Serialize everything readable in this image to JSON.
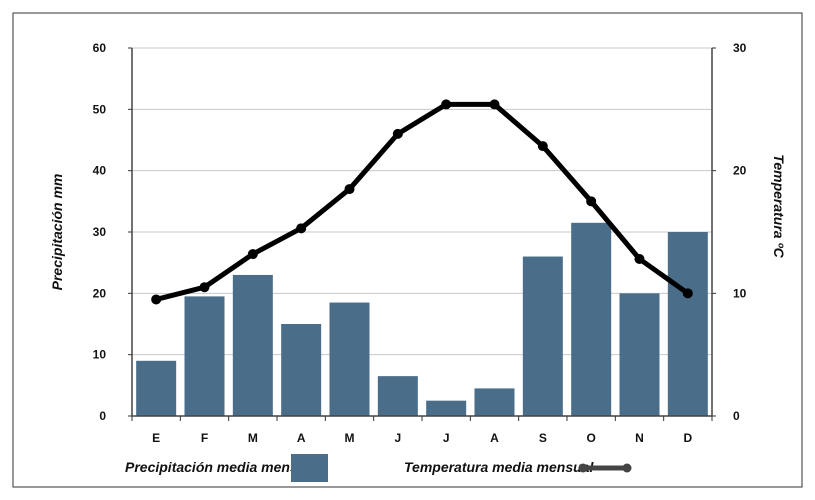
{
  "chart_data": {
    "type": "bar",
    "categories": [
      "E",
      "F",
      "M",
      "A",
      "M",
      "J",
      "J",
      "A",
      "S",
      "O",
      "N",
      "D"
    ],
    "series": [
      {
        "name": "Precipitación media mensual",
        "type": "bar",
        "axis": "left",
        "values": [
          9,
          19.5,
          23,
          15,
          18.5,
          6.5,
          2.5,
          4.5,
          26,
          31.5,
          20,
          30
        ],
        "color": "#4a6e8a"
      },
      {
        "name": "Temperatura media mensual",
        "type": "line",
        "axis": "right",
        "values": [
          9.5,
          10.5,
          13.2,
          15.3,
          18.5,
          23,
          25.4,
          25.4,
          22,
          17.5,
          12.8,
          10
        ],
        "color": "#000000"
      }
    ],
    "ylabel": "Precipitación mm",
    "y2label": "Temperatura ºC",
    "ylim": [
      0,
      60
    ],
    "y2lim": [
      0,
      30
    ],
    "yticks": [
      "0",
      "10",
      "20",
      "30",
      "40",
      "50",
      "60"
    ],
    "y2ticks": [
      "0",
      "10",
      "20",
      "30"
    ],
    "legend_position": "bottom",
    "grid": true
  },
  "legend": {
    "bar_label": "Precipitación media mensual",
    "line_label": "Temperatura media mensual"
  }
}
